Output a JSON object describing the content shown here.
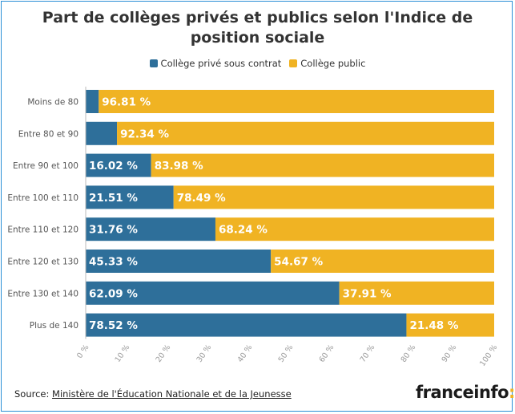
{
  "title": "Part de collèges privés et publics selon l'Indice de position sociale",
  "legend": [
    {
      "label": "Collège privé sous contrat",
      "color": "#2e6f9a"
    },
    {
      "label": "Collège public",
      "color": "#f0b323"
    }
  ],
  "source": {
    "prefix": "Source: ",
    "link_text": "Ministère de l'Éducation Nationale et de la Jeunesse"
  },
  "logo": {
    "text": "franceinfo",
    "mark": ":"
  },
  "chart_data": {
    "type": "bar",
    "orientation": "horizontal",
    "stacked": true,
    "categories": [
      "Moins de 80",
      "Entre 80 et 90",
      "Entre 90 et 100",
      "Entre 100 et 110",
      "Entre 110 et 120",
      "Entre 120 et 130",
      "Entre 130 et 140",
      "Plus de 140"
    ],
    "series": [
      {
        "name": "Collège privé sous contrat",
        "color": "#2e6f9a",
        "values": [
          3.19,
          7.66,
          16.02,
          21.51,
          31.76,
          45.33,
          62.09,
          78.52
        ],
        "labels": [
          "",
          "",
          "16.02 %",
          "21.51 %",
          "31.76 %",
          "45.33 %",
          "62.09 %",
          "78.52 %"
        ]
      },
      {
        "name": "Collège public",
        "color": "#f0b323",
        "values": [
          96.81,
          92.34,
          83.98,
          78.49,
          68.24,
          54.67,
          37.91,
          21.48
        ],
        "labels": [
          "96.81 %",
          "92.34 %",
          "83.98 %",
          "78.49 %",
          "68.24 %",
          "54.67 %",
          "37.91 %",
          "21.48 %"
        ]
      }
    ],
    "xlim": [
      0,
      100
    ],
    "xticks": [
      0,
      10,
      20,
      30,
      40,
      50,
      60,
      70,
      80,
      90,
      100
    ],
    "xtick_labels": [
      "0 %",
      "10 %",
      "20 %",
      "30 %",
      "40 %",
      "50 %",
      "60 %",
      "70 %",
      "80 %",
      "90 %",
      "100 %"
    ],
    "grid": false,
    "legend_position": "top"
  }
}
